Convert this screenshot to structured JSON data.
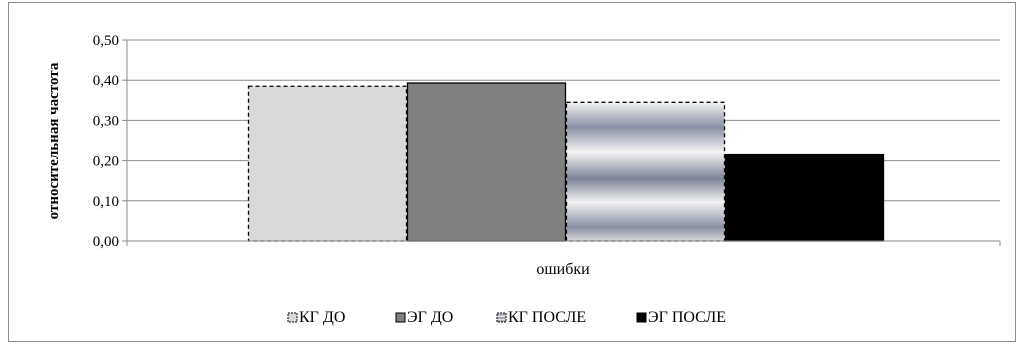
{
  "chart_data": {
    "type": "bar",
    "categories": [
      "ошибки"
    ],
    "series": [
      {
        "name": "КГ ДО",
        "values": [
          0.385
        ],
        "color": "#d9d9d9",
        "pattern": "solid-light-dashed-border"
      },
      {
        "name": "ЭГ ДО",
        "values": [
          0.393
        ],
        "color": "#808080",
        "pattern": "solid-gray"
      },
      {
        "name": "КГ ПОСЛЕ",
        "values": [
          0.345
        ],
        "color": "#9aa0b2",
        "pattern": "horizontal-gradient-dashed-border"
      },
      {
        "name": "ЭГ ПОСЛЕ",
        "values": [
          0.215
        ],
        "color": "#000000",
        "pattern": "solid-black"
      }
    ],
    "ylabel": "относительная частота",
    "ylim": [
      0,
      0.5
    ],
    "yticks": [
      "0,00",
      "0,10",
      "0,20",
      "0,30",
      "0,40",
      "0,50"
    ],
    "ytick_values": [
      0,
      0.1,
      0.2,
      0.3,
      0.4,
      0.5
    ],
    "grid": true,
    "legend_position": "bottom"
  }
}
